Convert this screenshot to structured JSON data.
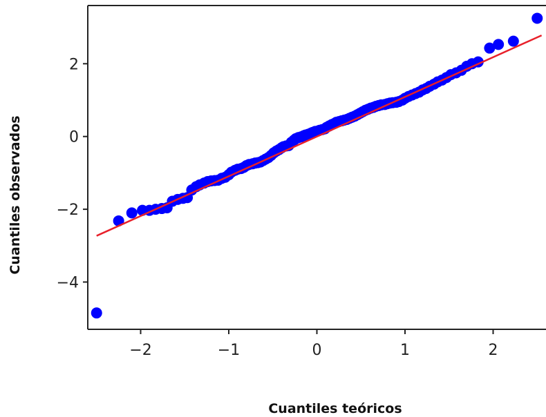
{
  "chart_data": {
    "type": "scatter",
    "title": "",
    "xlabel": "Cuantiles teóricos",
    "ylabel": "Cuantiles observados",
    "xlim": [
      -2.6,
      2.6
    ],
    "ylim": [
      -5.3,
      3.6
    ],
    "xticks": [
      -2,
      -1,
      0,
      1,
      2
    ],
    "xtick_labels": [
      "−2",
      "−1",
      "0",
      "1",
      "2"
    ],
    "yticks": [
      -4,
      -2,
      0,
      2
    ],
    "ytick_labels": [
      "−4",
      "−2",
      "0",
      "2"
    ],
    "grid": false,
    "legend": "none",
    "colors": {
      "points": "#0000ff",
      "fit_line": "#e8202a",
      "axes": "#222222"
    },
    "series": [
      {
        "type": "scatter",
        "points": [
          [
            -2.5,
            -4.85
          ],
          [
            -2.25,
            -2.32
          ],
          [
            -2.1,
            -2.1
          ],
          [
            -1.98,
            -2.03
          ],
          [
            -1.9,
            -2.03
          ],
          [
            -1.83,
            -2.0
          ],
          [
            -1.76,
            -1.98
          ],
          [
            -1.7,
            -1.96
          ],
          [
            -1.64,
            -1.78
          ],
          [
            -1.58,
            -1.73
          ],
          [
            -1.52,
            -1.7
          ],
          [
            -1.47,
            -1.68
          ],
          [
            -1.42,
            -1.47
          ],
          [
            -1.37,
            -1.38
          ],
          [
            -1.33,
            -1.33
          ],
          [
            -1.28,
            -1.28
          ],
          [
            -1.24,
            -1.24
          ],
          [
            -1.2,
            -1.22
          ],
          [
            -1.16,
            -1.21
          ],
          [
            -1.12,
            -1.2
          ],
          [
            -1.08,
            -1.15
          ],
          [
            -1.04,
            -1.12
          ],
          [
            -1.0,
            -1.05
          ],
          [
            -0.97,
            -0.98
          ],
          [
            -0.93,
            -0.93
          ],
          [
            -0.9,
            -0.9
          ],
          [
            -0.86,
            -0.88
          ],
          [
            -0.83,
            -0.85
          ],
          [
            -0.8,
            -0.8
          ],
          [
            -0.77,
            -0.77
          ],
          [
            -0.73,
            -0.75
          ],
          [
            -0.7,
            -0.73
          ],
          [
            -0.67,
            -0.72
          ],
          [
            -0.64,
            -0.7
          ],
          [
            -0.61,
            -0.66
          ],
          [
            -0.58,
            -0.62
          ],
          [
            -0.55,
            -0.58
          ],
          [
            -0.52,
            -0.52
          ],
          [
            -0.49,
            -0.45
          ],
          [
            -0.46,
            -0.4
          ],
          [
            -0.43,
            -0.36
          ],
          [
            -0.4,
            -0.31
          ],
          [
            -0.38,
            -0.28
          ],
          [
            -0.35,
            -0.26
          ],
          [
            -0.32,
            -0.25
          ],
          [
            -0.29,
            -0.16
          ],
          [
            -0.26,
            -0.1
          ],
          [
            -0.24,
            -0.06
          ],
          [
            -0.21,
            -0.03
          ],
          [
            -0.18,
            -0.01
          ],
          [
            -0.15,
            0.02
          ],
          [
            -0.13,
            0.04
          ],
          [
            -0.1,
            0.06
          ],
          [
            -0.07,
            0.09
          ],
          [
            -0.05,
            0.11
          ],
          [
            -0.02,
            0.14
          ],
          [
            0.01,
            0.15
          ],
          [
            0.03,
            0.17
          ],
          [
            0.06,
            0.19
          ],
          [
            0.09,
            0.21
          ],
          [
            0.11,
            0.25
          ],
          [
            0.14,
            0.29
          ],
          [
            0.17,
            0.33
          ],
          [
            0.2,
            0.36
          ],
          [
            0.22,
            0.39
          ],
          [
            0.25,
            0.41
          ],
          [
            0.28,
            0.43
          ],
          [
            0.31,
            0.45
          ],
          [
            0.34,
            0.47
          ],
          [
            0.37,
            0.5
          ],
          [
            0.4,
            0.53
          ],
          [
            0.43,
            0.56
          ],
          [
            0.46,
            0.6
          ],
          [
            0.49,
            0.64
          ],
          [
            0.52,
            0.68
          ],
          [
            0.55,
            0.72
          ],
          [
            0.58,
            0.75
          ],
          [
            0.61,
            0.78
          ],
          [
            0.64,
            0.8
          ],
          [
            0.67,
            0.83
          ],
          [
            0.7,
            0.85
          ],
          [
            0.73,
            0.87
          ],
          [
            0.77,
            0.88
          ],
          [
            0.8,
            0.9
          ],
          [
            0.83,
            0.92
          ],
          [
            0.86,
            0.93
          ],
          [
            0.9,
            0.94
          ],
          [
            0.93,
            0.96
          ],
          [
            0.97,
            1.0
          ],
          [
            1.0,
            1.05
          ],
          [
            1.04,
            1.1
          ],
          [
            1.08,
            1.14
          ],
          [
            1.12,
            1.18
          ],
          [
            1.16,
            1.22
          ],
          [
            1.2,
            1.28
          ],
          [
            1.24,
            1.32
          ],
          [
            1.28,
            1.38
          ],
          [
            1.33,
            1.44
          ],
          [
            1.37,
            1.5
          ],
          [
            1.42,
            1.55
          ],
          [
            1.47,
            1.62
          ],
          [
            1.52,
            1.7
          ],
          [
            1.58,
            1.75
          ],
          [
            1.64,
            1.82
          ],
          [
            1.7,
            1.93
          ],
          [
            1.76,
            2.0
          ],
          [
            1.83,
            2.05
          ],
          [
            1.96,
            2.43
          ],
          [
            2.06,
            2.53
          ],
          [
            2.23,
            2.62
          ],
          [
            2.5,
            3.25
          ]
        ]
      },
      {
        "type": "line",
        "x": [
          -2.5,
          2.55
        ],
        "y": [
          -2.73,
          2.78
        ]
      }
    ]
  }
}
